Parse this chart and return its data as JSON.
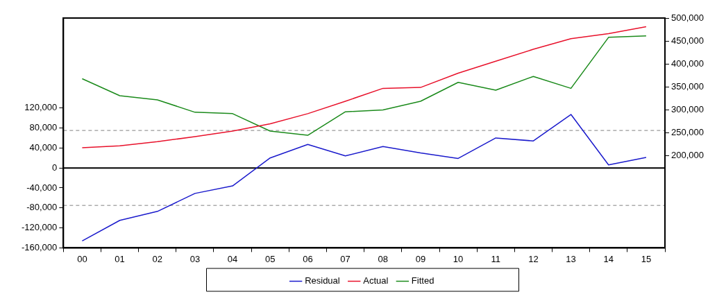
{
  "chart_data": {
    "type": "line",
    "categories": [
      "00",
      "01",
      "02",
      "03",
      "04",
      "05",
      "06",
      "07",
      "08",
      "09",
      "10",
      "11",
      "12",
      "13",
      "14",
      "15"
    ],
    "series": [
      {
        "name": "Residual",
        "color": "#1a1acc",
        "values": [
          -146000,
          -105000,
          -87000,
          -51000,
          -36000,
          20000,
          47000,
          24000,
          43000,
          30000,
          19000,
          60000,
          54000,
          107000,
          6000,
          21000
        ]
      },
      {
        "name": "Actual",
        "color": "#e8102a",
        "axis": "y2",
        "values": [
          218000,
          222000,
          231000,
          242000,
          254000,
          270000,
          292000,
          319000,
          347000,
          349000,
          380000,
          406000,
          432000,
          455000,
          466000,
          481000
        ]
      },
      {
        "name": "Fitted",
        "color": "#1a8a1a",
        "axis": "y2",
        "values": [
          368000,
          331000,
          322000,
          295000,
          292000,
          254000,
          245000,
          296000,
          300000,
          319000,
          360000,
          343000,
          373000,
          347000,
          458000,
          461000
        ]
      }
    ],
    "ylim": [
      -160000,
      300000
    ],
    "yticks": [
      {
        "value": -160000,
        "label": "-160,000"
      },
      {
        "value": -120000,
        "label": "-120,000"
      },
      {
        "value": -80000,
        "label": "-80,000"
      },
      {
        "value": -40000,
        "label": "-40,000"
      },
      0,
      {
        "value": 40000,
        "label": "40,000"
      },
      {
        "value": 80000,
        "label": "80,000"
      },
      {
        "value": 120000,
        "label": "120,000"
      }
    ],
    "y2lim": [
      0,
      500000
    ],
    "y2ticks": [
      {
        "value": 200000,
        "label": "200,000"
      },
      {
        "value": 250000,
        "label": "250,000"
      },
      {
        "value": 300000,
        "label": "300,000"
      },
      {
        "value": 350000,
        "label": "350,000"
      },
      {
        "value": 400000,
        "label": "400,000"
      },
      {
        "value": 450000,
        "label": "450,000"
      },
      {
        "value": 500000,
        "label": "500,000"
      }
    ],
    "ref_lines": [
      {
        "axis": "y",
        "value": 0,
        "color": "#000000",
        "line_style": "solid"
      },
      {
        "axis": "y",
        "value": 75000,
        "color": "#808080",
        "line_style": "dashed"
      },
      {
        "axis": "y",
        "value": -75000,
        "color": "#808080",
        "line_style": "dashed"
      }
    ],
    "grid": false,
    "legend": "bottom",
    "marker": "none",
    "line_style": "solid"
  }
}
